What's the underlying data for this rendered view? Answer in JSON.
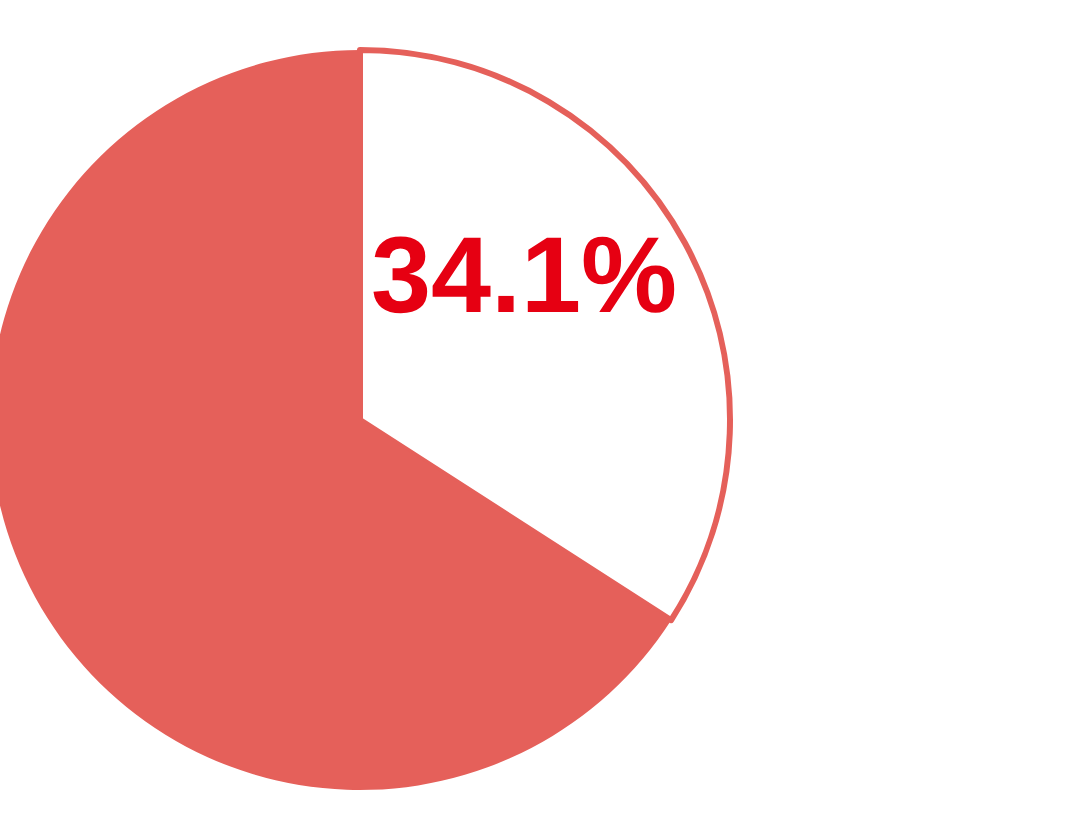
{
  "chart_data": {
    "type": "pie",
    "categories": [
      null,
      null
    ],
    "values": [
      34.1,
      65.9
    ],
    "colors": [
      "#ffffff",
      "#e5605a"
    ],
    "value_labels": [
      "34.1%",
      null
    ]
  }
}
